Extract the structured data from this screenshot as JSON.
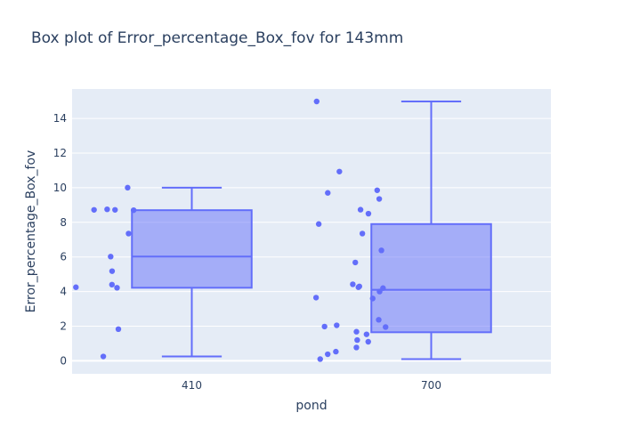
{
  "chart_data": {
    "type": "box",
    "title": "Box plot of Error_percentage_Box_fov for 143mm",
    "xlabel": "pond",
    "ylabel": "Error_percentage_Box_fov",
    "categories": [
      "410",
      "700"
    ],
    "ylim": [
      -0.75,
      15.7
    ],
    "yticks": [
      0,
      2,
      4,
      6,
      8,
      10,
      12,
      14
    ],
    "grid": true,
    "colors": {
      "box": "#636efa",
      "box_fill": "rgba(99,110,250,0.5)",
      "plot_bg": "#e5ecf6",
      "grid": "#ffffff",
      "text": "#2a3f5f"
    },
    "boxes": [
      {
        "category": "410",
        "min": 0.25,
        "q1": 4.22,
        "median": 6.02,
        "q3": 8.7,
        "max": 10.0,
        "points": [
          10.0,
          8.72,
          8.75,
          8.72,
          8.7,
          7.35,
          6.02,
          5.18,
          4.4,
          4.25,
          4.22,
          1.83,
          0.25
        ]
      },
      {
        "category": "700",
        "min": 0.1,
        "q1": 1.65,
        "median": 4.1,
        "q3": 7.9,
        "max": 14.98,
        "points": [
          14.98,
          10.93,
          9.85,
          9.7,
          9.35,
          8.73,
          8.5,
          7.9,
          7.35,
          6.38,
          5.68,
          4.42,
          4.3,
          4.25,
          4.2,
          4.0,
          3.65,
          3.6,
          2.37,
          2.05,
          1.98,
          1.95,
          1.68,
          1.53,
          1.2,
          1.1,
          0.77,
          0.53,
          0.38,
          0.1
        ]
      }
    ]
  }
}
